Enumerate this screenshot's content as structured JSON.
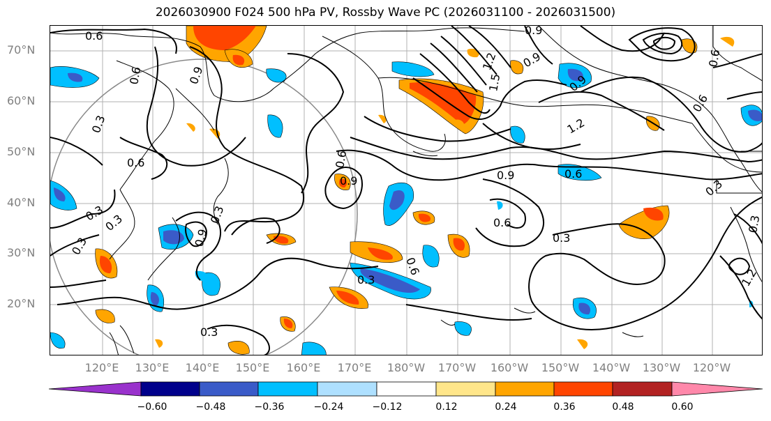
{
  "title": "2026030900 F024 500 hPa PV, Rossby Wave PC (2026031100 - 2026031500)",
  "lat_labels": [
    "70°N",
    "60°N",
    "50°N",
    "40°N",
    "30°N",
    "20°N"
  ],
  "lon_labels": [
    "120°E",
    "130°E",
    "140°E",
    "150°E",
    "160°E",
    "170°E",
    "180°W",
    "170°W",
    "160°W",
    "150°W",
    "140°W",
    "130°W",
    "120°W"
  ],
  "contour_labels": [
    "0.6",
    "0.6",
    "0.9",
    "0.3",
    "0.6",
    "0.3",
    "0.3",
    "0.3",
    "0.9",
    "0.3",
    "0.9",
    "0.6",
    "0.3",
    "0.6",
    "0.6",
    "0.3",
    "0.3",
    "0.9",
    "1.2",
    "1.5",
    "0.6",
    "0.9",
    "0.9",
    "1.2",
    "0.6",
    "0.3",
    "0.6",
    "0.3",
    "0.9",
    "1.2"
  ],
  "colorbar": {
    "tick_labels": [
      "−0.60",
      "−0.48",
      "−0.36",
      "−0.24",
      "−0.12",
      "0.12",
      "0.24",
      "0.36",
      "0.48",
      "0.60"
    ],
    "colors": [
      "#9932cc",
      "#00008b",
      "#3a5bc8",
      "#00bfff",
      "#aee0ff",
      "#ffffff",
      "#ffe68a",
      "#ffa500",
      "#ff4500",
      "#b22222",
      "#ff88aa"
    ]
  },
  "legend": {
    "shading_colors": {
      "strong_negative": "#3a5bc8",
      "negative": "#00bfff",
      "weak_negative": "#aee0ff",
      "weak_positive": "#ffe68a",
      "positive": "#ffa500",
      "strong_positive": "#ff4500"
    }
  }
}
